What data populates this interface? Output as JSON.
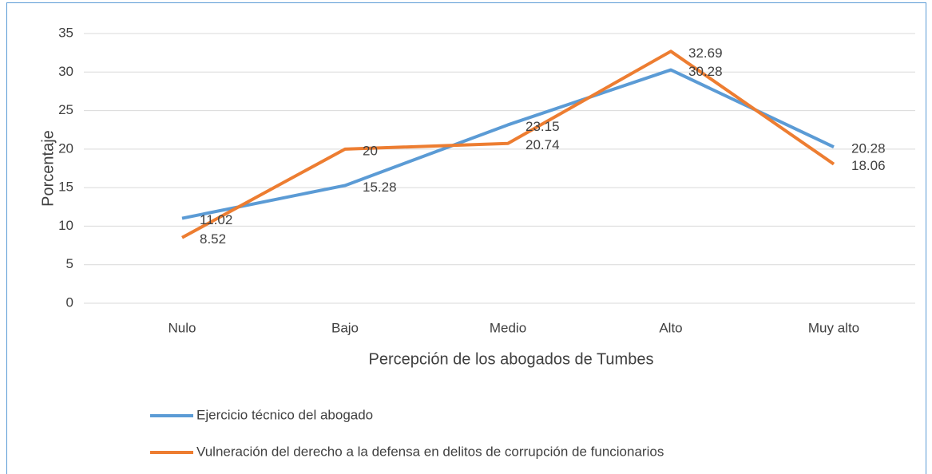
{
  "chart_data": {
    "type": "line",
    "categories": [
      "Nulo",
      "Bajo",
      "Medio",
      "Alto",
      "Muy alto"
    ],
    "series": [
      {
        "name": "Ejercicio técnico del abogado",
        "color": "#5b9bd5",
        "values": [
          11.02,
          15.28,
          23.15,
          30.28,
          20.28
        ]
      },
      {
        "name": "Vulneración del derecho a la defensa en delitos de corrupción de funcionarios",
        "color": "#ed7d31",
        "values": [
          8.52,
          20,
          20.74,
          32.69,
          18.06
        ]
      }
    ],
    "ylim": [
      0,
      35
    ],
    "yticks": [
      0,
      5,
      10,
      15,
      20,
      25,
      30,
      35
    ],
    "xlabel": "Percepción de los abogados de Tumbes",
    "ylabel": "Porcentaje",
    "grid": true,
    "legend": "bottom"
  }
}
